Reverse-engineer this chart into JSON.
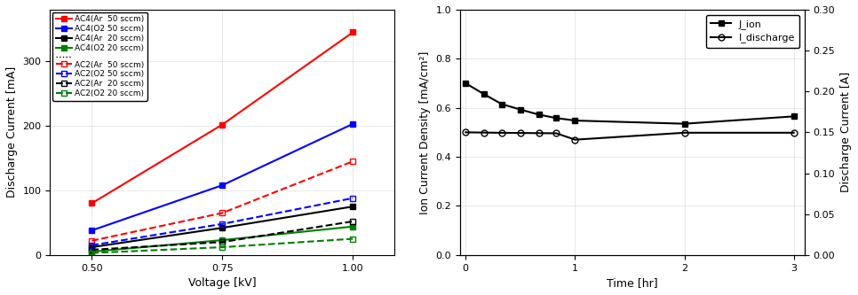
{
  "left": {
    "xlabel": "Voltage [kV]",
    "ylabel": "Discharge Current [mA]",
    "xticks": [
      0.5,
      0.75,
      1.0
    ],
    "xlim": [
      0.42,
      1.08
    ],
    "ylim": [
      0,
      380
    ],
    "yticks": [
      0,
      100,
      200,
      300
    ],
    "series": {
      "AC4_Ar50": {
        "x": [
          0.5,
          0.75,
          1.0
        ],
        "y": [
          80,
          202,
          345
        ],
        "color": "red",
        "ls": "-",
        "marker": "s",
        "filled": true,
        "label": "AC4(Ar  50 sccm)"
      },
      "AC4_O250": {
        "x": [
          0.5,
          0.75,
          1.0
        ],
        "y": [
          38,
          108,
          203
        ],
        "color": "blue",
        "ls": "-",
        "marker": "s",
        "filled": true,
        "label": "AC4(O2 50 sccm)"
      },
      "AC4_Ar20": {
        "x": [
          0.5,
          0.75,
          1.0
        ],
        "y": [
          12,
          42,
          75
        ],
        "color": "black",
        "ls": "-",
        "marker": "s",
        "filled": true,
        "label": "AC4(Ar  20 sccm)"
      },
      "AC4_O220": {
        "x": [
          0.5,
          0.75,
          1.0
        ],
        "y": [
          5,
          23,
          44
        ],
        "color": "green",
        "ls": "-",
        "marker": "s",
        "filled": true,
        "label": "AC4(O2 20 sccm)"
      },
      "AC2_Ar50": {
        "x": [
          0.5,
          0.75,
          1.0
        ],
        "y": [
          22,
          65,
          145
        ],
        "color": "red",
        "ls": "--",
        "marker": "s",
        "filled": false,
        "label": "AC2(Ar  50 sccm)"
      },
      "AC2_O250": {
        "x": [
          0.5,
          0.75,
          1.0
        ],
        "y": [
          15,
          48,
          88
        ],
        "color": "blue",
        "ls": "--",
        "marker": "s",
        "filled": false,
        "label": "AC2(O2 50 sccm)"
      },
      "AC2_Ar20": {
        "x": [
          0.5,
          0.75,
          1.0
        ],
        "y": [
          8,
          20,
          52
        ],
        "color": "black",
        "ls": "--",
        "marker": "s",
        "filled": false,
        "label": "AC2(Ar  20 sccm)"
      },
      "AC2_O220": {
        "x": [
          0.5,
          0.75,
          1.0
        ],
        "y": [
          3,
          12,
          25
        ],
        "color": "green",
        "ls": "--",
        "marker": "s",
        "filled": false,
        "label": "AC2(O2 20 sccm)"
      }
    }
  },
  "right": {
    "xlabel": "Time [hr]",
    "ylabel_left": "Ion Current Density [mA/cm²]",
    "ylabel_right": "Discharge Current [A]",
    "xlim": [
      -0.05,
      3.1
    ],
    "ylim_left": [
      0.0,
      1.0
    ],
    "ylim_right": [
      0.0,
      0.3
    ],
    "xticks": [
      0,
      1,
      2,
      3
    ],
    "yticks_left": [
      0.0,
      0.2,
      0.4,
      0.6,
      0.8,
      1.0
    ],
    "yticks_right": [
      0.0,
      0.05,
      0.1,
      0.15,
      0.2,
      0.25,
      0.3
    ],
    "J_ion": {
      "x": [
        0.0,
        0.17,
        0.33,
        0.5,
        0.67,
        0.83,
        1.0,
        2.0,
        3.0
      ],
      "y": [
        0.7,
        0.655,
        0.615,
        0.593,
        0.572,
        0.558,
        0.548,
        0.535,
        0.565
      ],
      "color": "black",
      "marker": "s",
      "label": "J_ion"
    },
    "I_discharge": {
      "x": [
        0.0,
        0.17,
        0.33,
        0.5,
        0.67,
        0.83,
        1.0,
        2.0,
        3.0
      ],
      "y": [
        0.15,
        0.1497,
        0.1494,
        0.1492,
        0.149,
        0.1488,
        0.141,
        0.1495,
        0.1495
      ],
      "color": "black",
      "marker": "o",
      "label": "I_discharge"
    }
  }
}
